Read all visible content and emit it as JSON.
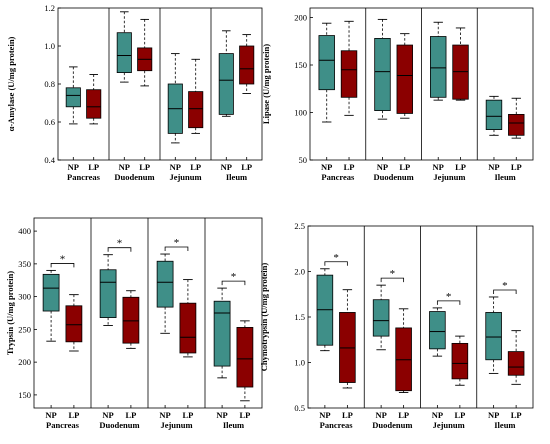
{
  "colors": {
    "NP": "#3f8f88",
    "LP": "#8b0000"
  },
  "chart_data": [
    {
      "type": "box",
      "panel": "top-left",
      "ylabel": "α-Amylase (U/mg protein)",
      "ylim": [
        0.4,
        1.2
      ],
      "yticks": [
        "0.4",
        "0.6",
        "0.8",
        "1.0",
        "1.2"
      ],
      "ytick_values": [
        0.4,
        0.6,
        0.8,
        1.0,
        1.2
      ],
      "regions": [
        "Pancreas",
        "Duodenum",
        "Jejunum",
        "Ileum"
      ],
      "xtick_labels": [
        "NP",
        "LP"
      ],
      "groups": [
        {
          "region": "Pancreas",
          "NP": {
            "min": 0.59,
            "q1": 0.68,
            "median": 0.74,
            "q3": 0.78,
            "max": 0.89
          },
          "LP": {
            "min": 0.59,
            "q1": 0.62,
            "median": 0.68,
            "q3": 0.77,
            "max": 0.85
          }
        },
        {
          "region": "Duodenum",
          "NP": {
            "min": 0.81,
            "q1": 0.86,
            "median": 0.95,
            "q3": 1.07,
            "max": 1.18
          },
          "LP": {
            "min": 0.79,
            "q1": 0.87,
            "median": 0.93,
            "q3": 0.99,
            "max": 1.14
          }
        },
        {
          "region": "Jejunum",
          "NP": {
            "min": 0.49,
            "q1": 0.54,
            "median": 0.67,
            "q3": 0.8,
            "max": 0.96
          },
          "LP": {
            "min": 0.54,
            "q1": 0.57,
            "median": 0.67,
            "q3": 0.76,
            "max": 0.93
          }
        },
        {
          "region": "Ileum",
          "NP": {
            "min": 0.63,
            "q1": 0.64,
            "median": 0.82,
            "q3": 0.96,
            "max": 1.08
          },
          "LP": {
            "min": 0.75,
            "q1": 0.8,
            "median": 0.88,
            "q3": 1.0,
            "max": 1.06
          }
        }
      ],
      "significance": []
    },
    {
      "type": "box",
      "panel": "top-right",
      "ylabel": "Lipase (U/mg protein)",
      "ylim": [
        50,
        210
      ],
      "yticks": [
        "50",
        "100",
        "150",
        "200"
      ],
      "ytick_values": [
        50,
        100,
        150,
        200
      ],
      "regions": [
        "Pancreas",
        "Duodenum",
        "Jejunum",
        "Ileum"
      ],
      "xtick_labels": [
        "NP",
        "LP"
      ],
      "groups": [
        {
          "region": "Pancreas",
          "NP": {
            "min": 90,
            "q1": 124,
            "median": 155,
            "q3": 181,
            "max": 194
          },
          "LP": {
            "min": 97,
            "q1": 116,
            "median": 145,
            "q3": 165,
            "max": 196
          }
        },
        {
          "region": "Duodenum",
          "NP": {
            "min": 93,
            "q1": 102,
            "median": 143,
            "q3": 178,
            "max": 198
          },
          "LP": {
            "min": 94,
            "q1": 99,
            "median": 139,
            "q3": 171,
            "max": 183
          }
        },
        {
          "region": "Jejunum",
          "NP": {
            "min": 113,
            "q1": 116,
            "median": 147,
            "q3": 180,
            "max": 195
          },
          "LP": {
            "min": 113,
            "q1": 114,
            "median": 143,
            "q3": 171,
            "max": 189
          }
        },
        {
          "region": "Ileum",
          "NP": {
            "min": 76,
            "q1": 82,
            "median": 96,
            "q3": 113,
            "max": 117
          },
          "LP": {
            "min": 73,
            "q1": 76,
            "median": 89,
            "q3": 98,
            "max": 115
          }
        }
      ],
      "significance": []
    },
    {
      "type": "box",
      "panel": "bottom-left",
      "ylabel": "Trypsin (U/mg protein)",
      "ylim": [
        130,
        420
      ],
      "yticks": [
        "150",
        "200",
        "250",
        "300",
        "350",
        "400"
      ],
      "ytick_values": [
        150,
        200,
        250,
        300,
        350,
        400
      ],
      "regions": [
        "Pancreas",
        "Duodenum",
        "Jejunum",
        "Ileum"
      ],
      "xtick_labels": [
        "NP",
        "LP"
      ],
      "groups": [
        {
          "region": "Pancreas",
          "NP": {
            "min": 232,
            "q1": 278,
            "median": 313,
            "q3": 334,
            "max": 340
          },
          "LP": {
            "min": 217,
            "q1": 231,
            "median": 257,
            "q3": 286,
            "max": 303
          }
        },
        {
          "region": "Duodenum",
          "NP": {
            "min": 256,
            "q1": 268,
            "median": 322,
            "q3": 341,
            "max": 364
          },
          "LP": {
            "min": 221,
            "q1": 229,
            "median": 263,
            "q3": 299,
            "max": 309
          }
        },
        {
          "region": "Jejunum",
          "NP": {
            "min": 244,
            "q1": 284,
            "median": 322,
            "q3": 354,
            "max": 365
          },
          "LP": {
            "min": 208,
            "q1": 214,
            "median": 238,
            "q3": 290,
            "max": 326
          }
        },
        {
          "region": "Ileum",
          "NP": {
            "min": 176,
            "q1": 194,
            "median": 275,
            "q3": 293,
            "max": 313
          },
          "LP": {
            "min": 141,
            "q1": 162,
            "median": 205,
            "q3": 253,
            "max": 263
          }
        }
      ],
      "significance": [
        {
          "region": "Pancreas",
          "label": "*"
        },
        {
          "region": "Duodenum",
          "label": "*"
        },
        {
          "region": "Jejunum",
          "label": "*"
        },
        {
          "region": "Ileum",
          "label": "*"
        }
      ]
    },
    {
      "type": "box",
      "panel": "bottom-right",
      "ylabel": "Chymotrypsin (U/mg protein)",
      "ylim": [
        0.5,
        2.5
      ],
      "yticks": [
        "0.5",
        "1.0",
        "1.5",
        "2.0",
        "2.5"
      ],
      "ytick_values": [
        0.5,
        1.0,
        1.5,
        2.0,
        2.5
      ],
      "regions": [
        "Pancreas",
        "Duodenum",
        "Jejunum",
        "Ileum"
      ],
      "xtick_labels": [
        "NP",
        "LP"
      ],
      "groups": [
        {
          "region": "Pancreas",
          "NP": {
            "min": 1.13,
            "q1": 1.19,
            "median": 1.58,
            "q3": 1.96,
            "max": 2.03
          },
          "LP": {
            "min": 0.72,
            "q1": 0.78,
            "median": 1.16,
            "q3": 1.55,
            "max": 1.8
          }
        },
        {
          "region": "Duodenum",
          "NP": {
            "min": 1.14,
            "q1": 1.29,
            "median": 1.46,
            "q3": 1.69,
            "max": 1.85
          },
          "LP": {
            "min": 0.67,
            "q1": 0.69,
            "median": 1.03,
            "q3": 1.38,
            "max": 1.59
          }
        },
        {
          "region": "Jejunum",
          "NP": {
            "min": 1.07,
            "q1": 1.15,
            "median": 1.34,
            "q3": 1.56,
            "max": 1.6
          },
          "LP": {
            "min": 0.75,
            "q1": 0.82,
            "median": 0.99,
            "q3": 1.21,
            "max": 1.29
          }
        },
        {
          "region": "Ileum",
          "NP": {
            "min": 0.88,
            "q1": 1.03,
            "median": 1.28,
            "q3": 1.55,
            "max": 1.72
          },
          "LP": {
            "min": 0.76,
            "q1": 0.86,
            "median": 0.95,
            "q3": 1.12,
            "max": 1.35
          }
        }
      ],
      "significance": [
        {
          "region": "Pancreas",
          "label": "*"
        },
        {
          "region": "Duodenum",
          "label": "*"
        },
        {
          "region": "Jejunum",
          "label": "*"
        },
        {
          "region": "Ileum",
          "label": "*"
        }
      ]
    }
  ]
}
